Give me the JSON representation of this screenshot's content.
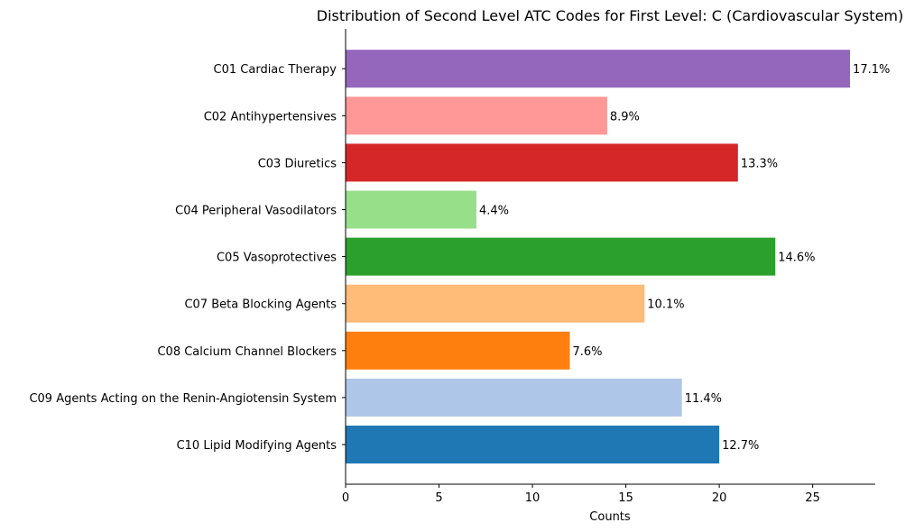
{
  "chart_data": {
    "type": "bar",
    "orientation": "horizontal",
    "title": "Distribution of Second Level ATC Codes for First Level: C (Cardiovascular System)",
    "xlabel": "Counts",
    "ylabel": "",
    "xlim": [
      0,
      28.35
    ],
    "xticks": [
      0,
      5,
      10,
      15,
      20,
      25
    ],
    "grid": false,
    "categories": [
      "C10 Lipid Modifying Agents",
      "C09 Agents Acting on the Renin-Angiotensin System",
      "C08 Calcium Channel Blockers",
      "C07 Beta Blocking Agents",
      "C05 Vasoprotectives",
      "C04 Peripheral Vasodilators",
      "C03 Diuretics",
      "C02 Antihypertensives",
      "C01 Cardiac Therapy"
    ],
    "values": [
      20,
      18,
      12,
      16,
      23,
      7,
      21,
      14,
      27
    ],
    "data_labels": [
      "12.7%",
      "11.4%",
      "7.6%",
      "10.1%",
      "14.6%",
      "4.4%",
      "13.3%",
      "8.9%",
      "17.1%"
    ],
    "colors": [
      "#1f77b4",
      "#aec7e8",
      "#ff7f0e",
      "#ffbb78",
      "#2ca02c",
      "#98df8a",
      "#d62728",
      "#ff9896",
      "#9467bd"
    ]
  }
}
